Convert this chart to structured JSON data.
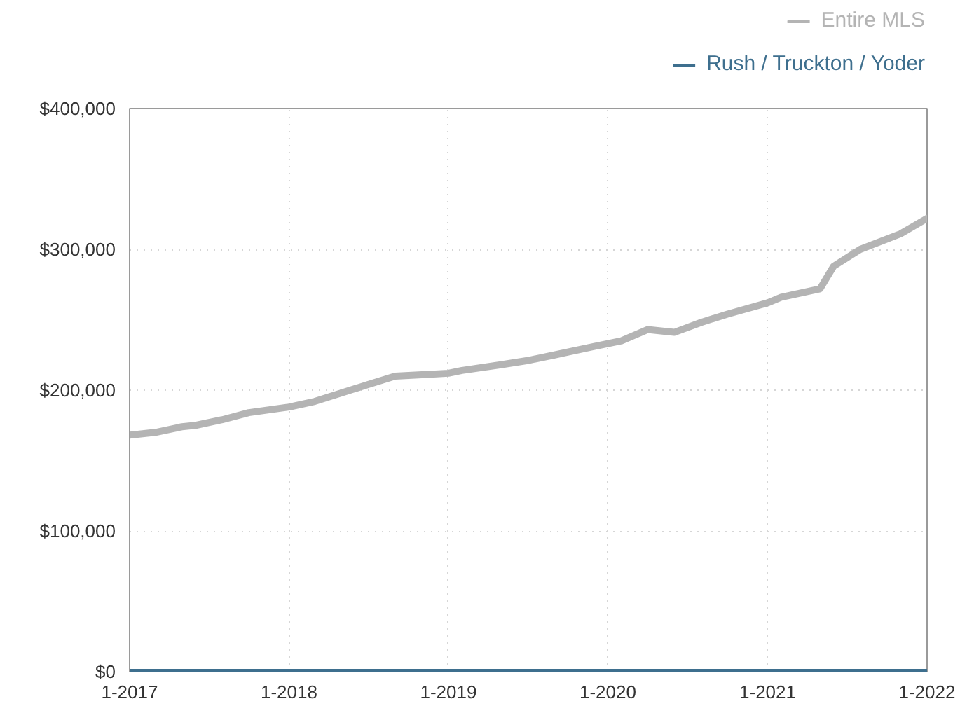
{
  "chart_data": {
    "type": "line",
    "xlim": [
      "2017-01",
      "2022-01"
    ],
    "ylim": [
      0,
      400000
    ],
    "xticks": [
      {
        "value": "2017-01",
        "label": "1-2017"
      },
      {
        "value": "2018-01",
        "label": "1-2018"
      },
      {
        "value": "2019-01",
        "label": "1-2019"
      },
      {
        "value": "2020-01",
        "label": "1-2020"
      },
      {
        "value": "2021-01",
        "label": "1-2021"
      },
      {
        "value": "2022-01",
        "label": "1-2022"
      }
    ],
    "yticks": [
      {
        "value": 0,
        "label": "$0"
      },
      {
        "value": 100000,
        "label": "$100,000"
      },
      {
        "value": 200000,
        "label": "$200,000"
      },
      {
        "value": 300000,
        "label": "$300,000"
      },
      {
        "value": 400000,
        "label": "$400,000"
      }
    ],
    "grid": true,
    "legend": "top right",
    "marker": "none",
    "line_style": "solid",
    "series": [
      {
        "name": "Entire MLS",
        "color": "#b4b4b4",
        "x": [
          "2017-01",
          "2017-03",
          "2017-05",
          "2017-06",
          "2017-08",
          "2017-10",
          "2018-01",
          "2018-03",
          "2018-05",
          "2018-07",
          "2018-08",
          "2018-09",
          "2018-11",
          "2019-01",
          "2019-02",
          "2019-05",
          "2019-07",
          "2019-09",
          "2019-12",
          "2020-02",
          "2020-04",
          "2020-06",
          "2020-08",
          "2020-10",
          "2021-01",
          "2021-02",
          "2021-05",
          "2021-06",
          "2021-08",
          "2021-11",
          "2022-01"
        ],
        "values": [
          168000,
          170000,
          174000,
          175000,
          179000,
          184000,
          188000,
          192000,
          198000,
          204000,
          207000,
          210000,
          211000,
          212000,
          214000,
          218000,
          221000,
          225000,
          231000,
          235000,
          243000,
          241000,
          248000,
          254000,
          262000,
          266000,
          272000,
          288000,
          300000,
          311000,
          322000
        ]
      },
      {
        "name": "Rush / Truckton / Yoder",
        "color": "#3e6f8e",
        "x": [
          "2017-01",
          "2018-01",
          "2019-01",
          "2020-01",
          "2021-01",
          "2022-01"
        ],
        "values": [
          0,
          0,
          0,
          0,
          0,
          0
        ]
      }
    ]
  }
}
